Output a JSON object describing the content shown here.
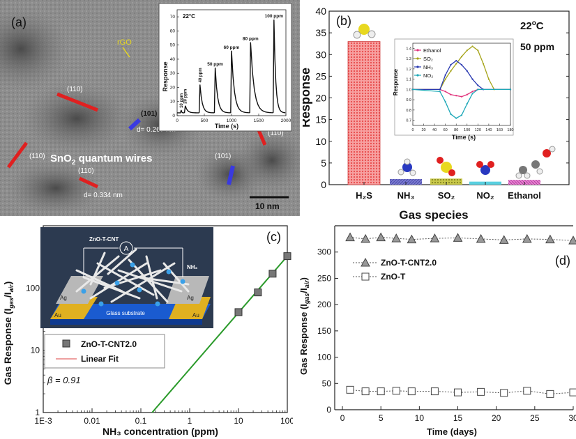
{
  "colors": {
    "bar_h2s": "#f26b6b",
    "bar_small": "#7a7ad0",
    "ethanol": "#e0307a",
    "so2": "#a6a41a",
    "nh3": "#2838b0",
    "no2": "#1ea8b8",
    "fit_line": "#2a9a2a",
    "red_marker": "#e02020",
    "blue_marker": "#3a3ae0",
    "rgo_label": "#e8d820"
  },
  "panel_a": {
    "label": "(a)",
    "rgo_label": "rGO",
    "lattice_labels": [
      "(110)",
      "(101)",
      "(110)",
      "(110)",
      "(110)",
      "(101)"
    ],
    "d_labels": [
      "d= 0.267 nm",
      "d= 0.334 nm"
    ],
    "wires_label": "SnO",
    "wires_sub": "2",
    "wires_rest": " quantum wires",
    "scalebar": "10 nm",
    "inset": {
      "temp": "22°C",
      "ylabel": "Response",
      "xlabel": "Time (s)",
      "ppm_labels": [
        "10 ppm",
        "20 ppm",
        "40 ppm",
        "50 ppm",
        "60 ppm",
        "80 ppm",
        "100 ppm"
      ]
    }
  },
  "panel_b": {
    "label": "(b)",
    "temp_main": "22",
    "temp_sup": "o",
    "temp_unit": "C",
    "conc": "50 ppm",
    "ylabel": "Response",
    "xlabel": "Gas species",
    "categories": [
      "H₂S",
      "NH₃",
      "SO₂",
      "NO₂",
      "Ethanol"
    ],
    "inset": {
      "ylabel": "Response",
      "xlabel": "Time (s)",
      "legend": [
        "Ethanol",
        "SO₂",
        "NH₃",
        "NO₂"
      ]
    }
  },
  "panel_c": {
    "label": "(c)",
    "ylabel": "Gas Response (I",
    "ylabel_sub1": "gas",
    "ylabel_mid": "/I",
    "ylabel_sub2": "air",
    "ylabel_end": ")",
    "xlabel": "NH₃ concentration (ppm)",
    "legend": [
      "ZnO-T-CNT2.0",
      "Linear Fit"
    ],
    "beta": "β = 0.91",
    "schematic": {
      "device_label": "ZnO-T-CNT",
      "meter": "A",
      "gas": "NH₃",
      "electrode1": "Ag",
      "electrode2": "Au",
      "substrate": "Glass substrate"
    }
  },
  "panel_d": {
    "label": "(d)",
    "ylabel": "Gas Response (I",
    "ylabel_sub1": "gas",
    "ylabel_mid": "/I",
    "ylabel_sub2": "air",
    "ylabel_end": ")",
    "xlabel": "Time (days)",
    "legend": [
      "ZnO-T-CNT2.0",
      "ZnO-T"
    ]
  },
  "chart_data": [
    {
      "panel": "a-inset",
      "type": "line",
      "title": "",
      "xlabel": "Time (s)",
      "ylabel": "Response",
      "xlim": [
        0,
        2000
      ],
      "ylim": [
        0,
        75
      ],
      "x_ticks": [
        0,
        500,
        1000,
        1500,
        2000
      ],
      "y_ticks": [
        0,
        10,
        20,
        30,
        40,
        50,
        60,
        70
      ],
      "series": [
        {
          "name": "",
          "x": [
            0,
            60,
            75,
            130,
            150,
            300,
            320,
            480,
            500,
            680,
            700,
            980,
            1000,
            1270,
            1300,
            1550,
            1570,
            1770,
            1800,
            1990
          ],
          "y": [
            1,
            2,
            4,
            2,
            7,
            2,
            22,
            3,
            34,
            3,
            46,
            3,
            52,
            3,
            52,
            3,
            68,
            3,
            3,
            2
          ]
        }
      ],
      "peaks": [
        {
          "label": "10 ppm",
          "time": 75,
          "value": 4
        },
        {
          "label": "20 ppm",
          "time": 150,
          "value": 7
        },
        {
          "label": "40 ppm",
          "time": 420,
          "value": 22
        },
        {
          "label": "50 ppm",
          "time": 700,
          "value": 34
        },
        {
          "label": "60 ppm",
          "time": 1000,
          "value": 46
        },
        {
          "label": "80 ppm",
          "time": 1350,
          "value": 52
        },
        {
          "label": "100 ppm",
          "time": 1780,
          "value": 68
        }
      ]
    },
    {
      "panel": "b",
      "type": "bar",
      "xlabel": "Gas species",
      "ylabel": "Response",
      "categories": [
        "H₂S",
        "NH₃",
        "SO₂",
        "NO₂",
        "Ethanol"
      ],
      "values": [
        33,
        1.3,
        1.4,
        0.7,
        1.1
      ],
      "ylim": [
        0,
        40
      ],
      "y_ticks": [
        0,
        5,
        10,
        15,
        20,
        25,
        30,
        35,
        40
      ]
    },
    {
      "panel": "b-inset",
      "type": "line",
      "xlabel": "Time (s)",
      "ylabel": "Response",
      "xlim": [
        0,
        180
      ],
      "ylim": [
        0.65,
        1.45
      ],
      "x_ticks": [
        0,
        20,
        40,
        60,
        80,
        100,
        120,
        140,
        160,
        180
      ],
      "y_ticks": [
        0.7,
        0.8,
        0.9,
        1.0,
        1.1,
        1.2,
        1.3,
        1.4
      ],
      "series": [
        {
          "name": "Ethanol",
          "x": [
            0,
            50,
            60,
            70,
            80,
            90,
            100,
            110,
            120,
            180
          ],
          "y": [
            1.0,
            1.0,
            0.98,
            0.95,
            0.94,
            0.93,
            0.95,
            0.98,
            1.0,
            1.0
          ]
        },
        {
          "name": "SO₂",
          "x": [
            0,
            50,
            60,
            70,
            80,
            90,
            100,
            110,
            120,
            130,
            140,
            150,
            180
          ],
          "y": [
            1.0,
            1.0,
            1.1,
            1.18,
            1.25,
            1.32,
            1.38,
            1.42,
            1.38,
            1.25,
            1.1,
            1.0,
            1.0
          ]
        },
        {
          "name": "NH₃",
          "x": [
            0,
            50,
            60,
            70,
            80,
            90,
            100,
            110,
            120,
            130,
            180
          ],
          "y": [
            1.0,
            1.0,
            1.14,
            1.24,
            1.28,
            1.24,
            1.18,
            1.1,
            1.04,
            1.0,
            1.0
          ]
        },
        {
          "name": "NO₂",
          "x": [
            0,
            50,
            60,
            70,
            80,
            90,
            100,
            110,
            120,
            180
          ],
          "y": [
            1.0,
            0.98,
            0.88,
            0.76,
            0.72,
            0.75,
            0.86,
            0.96,
            1.0,
            1.0
          ]
        }
      ]
    },
    {
      "panel": "c",
      "type": "scatter",
      "xlabel": "NH₃ concentration (ppm)",
      "ylabel": "Gas Response (Igas/Iair)",
      "xscale": "log",
      "yscale": "log",
      "xlim": [
        0.001,
        100
      ],
      "ylim": [
        1,
        1000
      ],
      "x_ticks": [
        "1E-3",
        "0.01",
        "0.1",
        "1",
        "10",
        "100"
      ],
      "y_ticks": [
        "1",
        "10",
        "100"
      ],
      "series": [
        {
          "name": "ZnO-T-CNT2.0",
          "x": [
            10,
            25,
            50,
            100
          ],
          "y": [
            41,
            85,
            170,
            325
          ]
        },
        {
          "name": "Linear Fit",
          "x": [
            0.17,
            100
          ],
          "y": [
            1,
            325
          ]
        }
      ]
    },
    {
      "panel": "d",
      "type": "line",
      "xlabel": "Time (days)",
      "ylabel": "Gas Response (Igas/Iair)",
      "xlim": [
        -1,
        30
      ],
      "ylim": [
        0,
        350
      ],
      "x_ticks": [
        0,
        5,
        10,
        15,
        20,
        25,
        30
      ],
      "y_ticks": [
        0,
        50,
        100,
        150,
        200,
        250,
        300
      ],
      "series": [
        {
          "name": "ZnO-T-CNT2.0",
          "x": [
            1,
            3,
            5,
            7,
            9,
            12,
            15,
            18,
            21,
            24,
            27,
            30
          ],
          "y": [
            328,
            325,
            328,
            326,
            324,
            326,
            327,
            325,
            323,
            325,
            324,
            322
          ]
        },
        {
          "name": "ZnO-T",
          "x": [
            1,
            3,
            5,
            7,
            9,
            12,
            15,
            18,
            21,
            24,
            27,
            30
          ],
          "y": [
            38,
            35,
            35,
            36,
            35,
            35,
            33,
            34,
            32,
            36,
            30,
            33
          ]
        }
      ]
    }
  ]
}
